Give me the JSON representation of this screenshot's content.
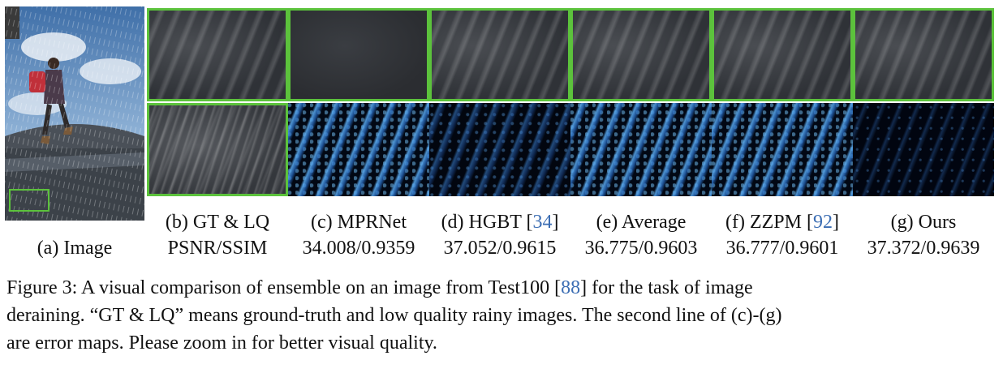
{
  "labels": {
    "a": "(a) Image",
    "b": "(b) GT & LQ",
    "c": "(c) MPRNet",
    "d_pre": "(d) HGBT [",
    "d_cite": "34",
    "d_post": "]",
    "e": "(e) Average",
    "f_pre": "(f) ZZPM [",
    "f_cite": "92",
    "f_post": "]",
    "g": "(g) Ours"
  },
  "metrics": {
    "header": "PSNR/SSIM",
    "c": "34.008/0.9359",
    "d": "37.052/0.9615",
    "e": "36.775/0.9603",
    "f": "36.777/0.9601",
    "g": "37.372/0.9639"
  },
  "caption": {
    "line1_pre": "Figure 3:  A visual comparison of ensemble on an image from Test100 [",
    "line1_cite": "88",
    "line1_post": "] for the task of image",
    "line2": "deraining. “GT & LQ” means ground-truth and low quality rainy images. The second line of (c)-(g)",
    "line3": "are error maps. Please zoom in for better visual quality."
  },
  "colors": {
    "highlight_border": "#5cc23c",
    "citation": "#3b6db3"
  }
}
